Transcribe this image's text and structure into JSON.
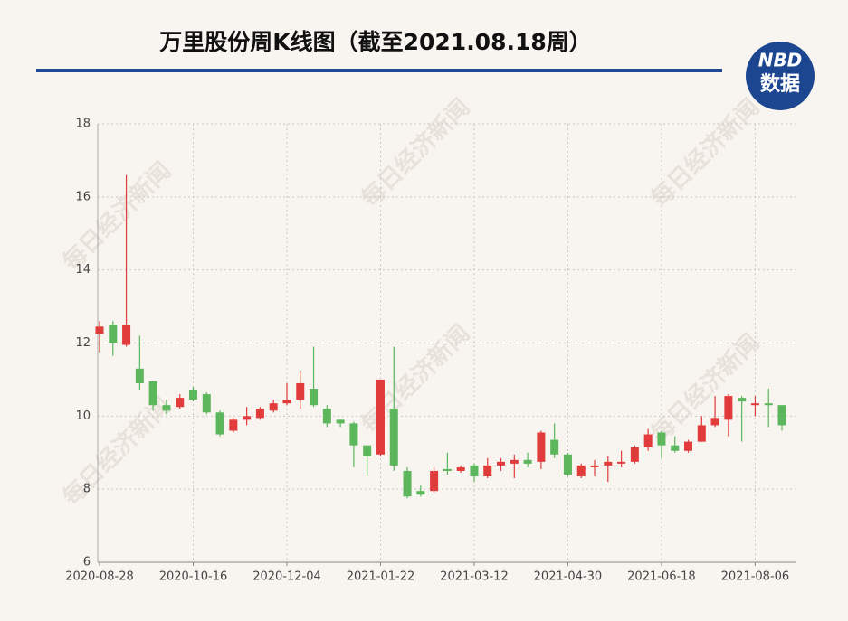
{
  "chart_data": {
    "type": "candlestick",
    "title": "万里股份周K线图（截至2021.08.18周）",
    "logo": [
      "NBD",
      "数据"
    ],
    "watermark": "每日经济新闻",
    "categories": [
      "2020-08-28",
      null,
      null,
      null,
      null,
      null,
      null,
      "2020-10-16",
      null,
      null,
      null,
      null,
      null,
      null,
      "2020-12-04",
      null,
      null,
      null,
      null,
      null,
      null,
      "2021-01-22",
      null,
      null,
      null,
      null,
      null,
      null,
      "2021-03-12",
      null,
      null,
      null,
      null,
      null,
      null,
      "2021-04-30",
      null,
      null,
      null,
      null,
      null,
      null,
      "2021-06-18",
      null,
      null,
      null,
      null,
      null,
      null,
      "2021-08-06",
      null,
      null
    ],
    "open": [
      12.25,
      12.5,
      11.95,
      11.3,
      10.95,
      10.3,
      10.25,
      10.7,
      10.6,
      10.1,
      9.6,
      9.9,
      9.95,
      10.15,
      10.35,
      10.45,
      10.75,
      10.2,
      9.9,
      9.8,
      9.2,
      8.95,
      10.2,
      8.5,
      7.95,
      7.95,
      8.55,
      8.5,
      8.65,
      8.35,
      8.65,
      8.7,
      8.8,
      8.75,
      9.35,
      8.95,
      8.35,
      8.6,
      8.65,
      8.7,
      8.75,
      9.15,
      9.55,
      9.2,
      9.05,
      9.3,
      9.75,
      9.9,
      10.5,
      10.3,
      10.35,
      10.3
    ],
    "high": [
      12.6,
      12.6,
      16.6,
      12.2,
      10.95,
      10.45,
      10.6,
      10.8,
      10.65,
      10.15,
      9.95,
      10.25,
      10.25,
      10.45,
      10.9,
      11.25,
      11.9,
      10.3,
      9.9,
      9.85,
      9.2,
      11.0,
      11.9,
      8.6,
      8.1,
      8.6,
      9.0,
      8.65,
      8.7,
      8.85,
      8.85,
      8.95,
      9.0,
      9.6,
      9.8,
      9.0,
      8.7,
      8.8,
      8.9,
      9.05,
      9.2,
      9.65,
      9.6,
      9.45,
      9.35,
      10.0,
      10.55,
      10.6,
      10.55,
      10.55,
      10.75,
      10.3
    ],
    "low": [
      11.75,
      11.65,
      11.9,
      10.7,
      10.15,
      10.05,
      10.2,
      10.4,
      10.05,
      9.45,
      9.55,
      9.75,
      9.9,
      10.1,
      10.3,
      10.2,
      10.25,
      9.7,
      9.7,
      8.6,
      8.35,
      8.9,
      8.5,
      7.75,
      7.8,
      7.9,
      8.4,
      8.45,
      8.2,
      8.3,
      8.5,
      8.3,
      8.6,
      8.55,
      8.85,
      8.35,
      8.3,
      8.35,
      8.2,
      8.6,
      8.7,
      9.05,
      8.85,
      9.0,
      9.0,
      9.3,
      9.7,
      9.45,
      9.3,
      10.0,
      9.7,
      9.6
    ],
    "close": [
      12.45,
      12.0,
      12.5,
      10.9,
      10.3,
      10.15,
      10.5,
      10.45,
      10.1,
      9.5,
      9.9,
      10.0,
      10.2,
      10.35,
      10.45,
      10.9,
      10.3,
      9.8,
      9.8,
      9.2,
      8.9,
      11.0,
      8.65,
      7.8,
      7.85,
      8.5,
      8.5,
      8.6,
      8.35,
      8.65,
      8.75,
      8.8,
      8.7,
      9.55,
      8.95,
      8.4,
      8.65,
      8.65,
      8.75,
      8.75,
      9.15,
      9.5,
      9.2,
      9.05,
      9.3,
      9.75,
      9.95,
      10.55,
      10.4,
      10.35,
      10.3,
      9.75
    ],
    "up_color": "#e23b3b",
    "down_color": "#5cb65c",
    "ylim": [
      6,
      18
    ],
    "yticks": [
      6,
      8,
      10,
      12,
      14,
      16,
      18
    ],
    "grid": true
  }
}
